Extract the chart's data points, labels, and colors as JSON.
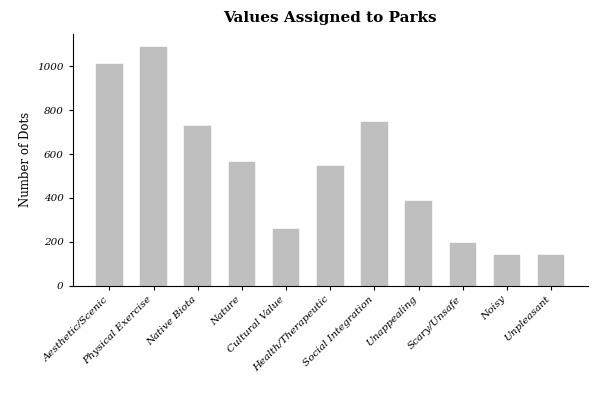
{
  "title": "Values Assigned to Parks",
  "ylabel": "Number of Dots",
  "categories": [
    "Aesthetic/Scenic",
    "Physical Exercise",
    "Native Biota",
    "Nature",
    "Cultural Value",
    "Health/Therapeutic",
    "Social Integration",
    "Unappealing",
    "Scary/Unsafe",
    "Noisy",
    "Unpleasant"
  ],
  "values": [
    1010,
    1090,
    730,
    565,
    260,
    545,
    745,
    385,
    195,
    140,
    140
  ],
  "bar_color": "#bfbfbf",
  "bar_edge_color": "#bfbfbf",
  "background_color": "#ffffff",
  "ylim": [
    0,
    1150
  ],
  "yticks": [
    0,
    200,
    400,
    600,
    800,
    1000
  ],
  "title_fontsize": 11,
  "axis_label_fontsize": 8.5,
  "tick_label_fontsize": 7.5,
  "bar_width": 0.6
}
